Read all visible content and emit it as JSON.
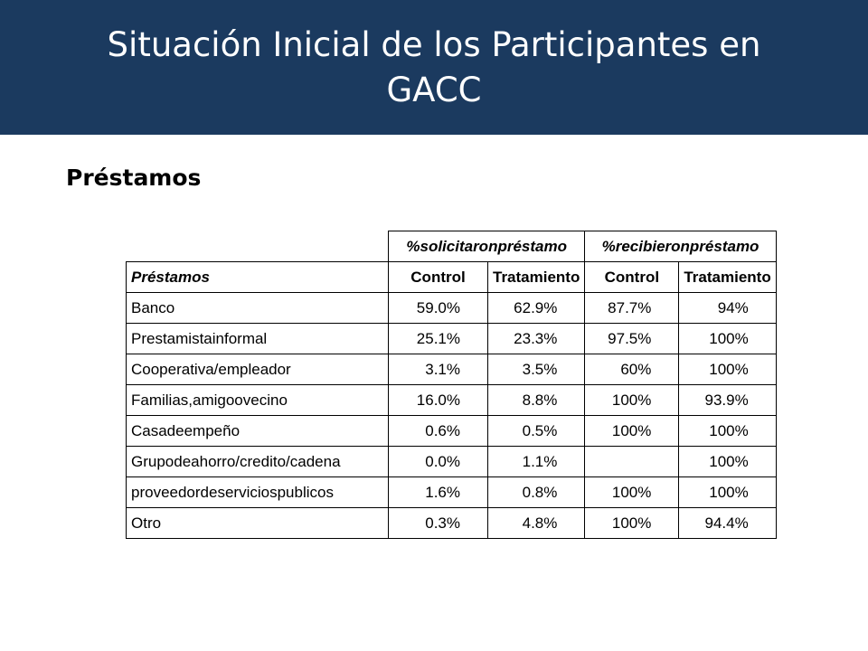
{
  "slide": {
    "title": "Situación Inicial de los Participantes en GACC",
    "subtitle": "Préstamos"
  },
  "table": {
    "group_headers": [
      "%solicitaronpréstamo",
      "%recibieronpréstamo"
    ],
    "row_header_label": "Préstamos",
    "column_headers": [
      "Control",
      "Tratamiento",
      "Control",
      "Tratamiento"
    ],
    "rows": [
      {
        "label": "Banco",
        "values": [
          "59.0%",
          "62.9%",
          "87.7%",
          "94%"
        ]
      },
      {
        "label": "Prestamistainformal",
        "values": [
          "25.1%",
          "23.3%",
          "97.5%",
          "100%"
        ]
      },
      {
        "label": "Cooperativa/empleador",
        "values": [
          "3.1%",
          "3.5%",
          "60%",
          "100%"
        ]
      },
      {
        "label": "Familias,amigoovecino",
        "values": [
          "16.0%",
          "8.8%",
          "100%",
          "93.9%"
        ]
      },
      {
        "label": "Casadeempeño",
        "values": [
          "0.6%",
          "0.5%",
          "100%",
          "100%"
        ]
      },
      {
        "label": "Grupodeahorro/credito/cadena",
        "values": [
          "0.0%",
          "1.1%",
          "",
          "100%"
        ]
      },
      {
        "label": "proveedordeserviciospublicos",
        "values": [
          "1.6%",
          "0.8%",
          "100%",
          "100%"
        ]
      },
      {
        "label": "Otro",
        "values": [
          "0.3%",
          "4.8%",
          "100%",
          "94.4%"
        ]
      }
    ]
  }
}
